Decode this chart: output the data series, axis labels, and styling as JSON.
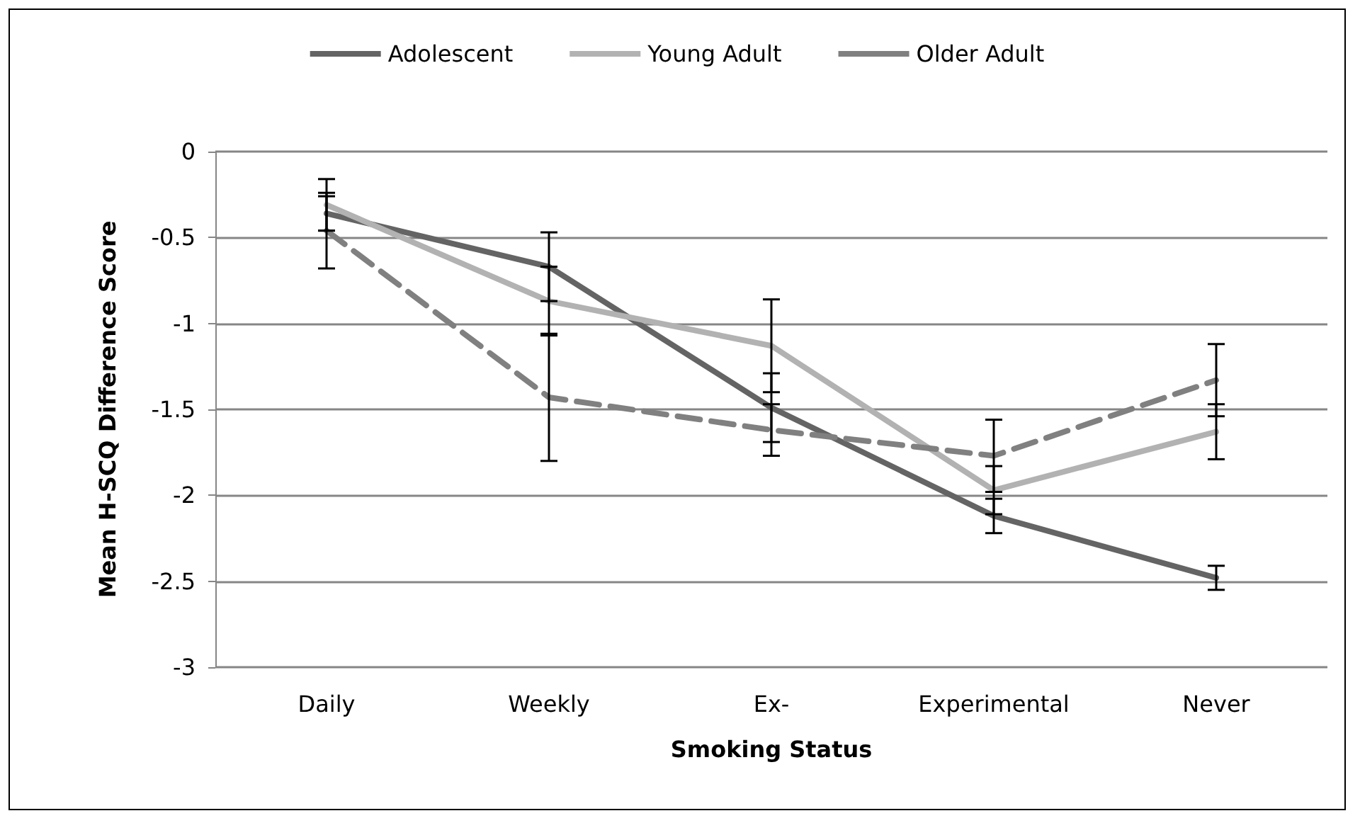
{
  "chart_data": {
    "type": "line",
    "xlabel": "Smoking Status",
    "ylabel": "Mean H-SCQ Difference Score",
    "categories": [
      "Daily",
      "Weekly",
      "Ex-",
      "Experimental",
      "Never"
    ],
    "series": [
      {
        "name": "Adolescent",
        "color": "#646464",
        "line_style": "solid",
        "values": [
          -0.36,
          -0.67,
          -1.49,
          -2.12,
          -2.48
        ],
        "errors": [
          0.1,
          0.2,
          0.2,
          0.1,
          0.07
        ]
      },
      {
        "name": "Young Adult",
        "color": "#b2b2b2",
        "line_style": "solid",
        "values": [
          -0.31,
          -0.87,
          -1.13,
          -1.97,
          -1.63
        ],
        "errors": [
          0.15,
          0.2,
          0.27,
          0.14,
          0.16
        ]
      },
      {
        "name": "Older Adult",
        "color": "#808080",
        "line_style": "dashed",
        "values": [
          -0.46,
          -1.43,
          -1.62,
          -1.77,
          -1.33
        ],
        "errors": [
          0.22,
          0.37,
          0.15,
          0.21,
          0.21
        ]
      }
    ],
    "ylim": [
      -3,
      0
    ],
    "yticks": [
      -3,
      -2.5,
      -2,
      -1.5,
      -1,
      -0.5,
      0
    ],
    "grid": "y",
    "legend": "top",
    "marker": "none"
  }
}
